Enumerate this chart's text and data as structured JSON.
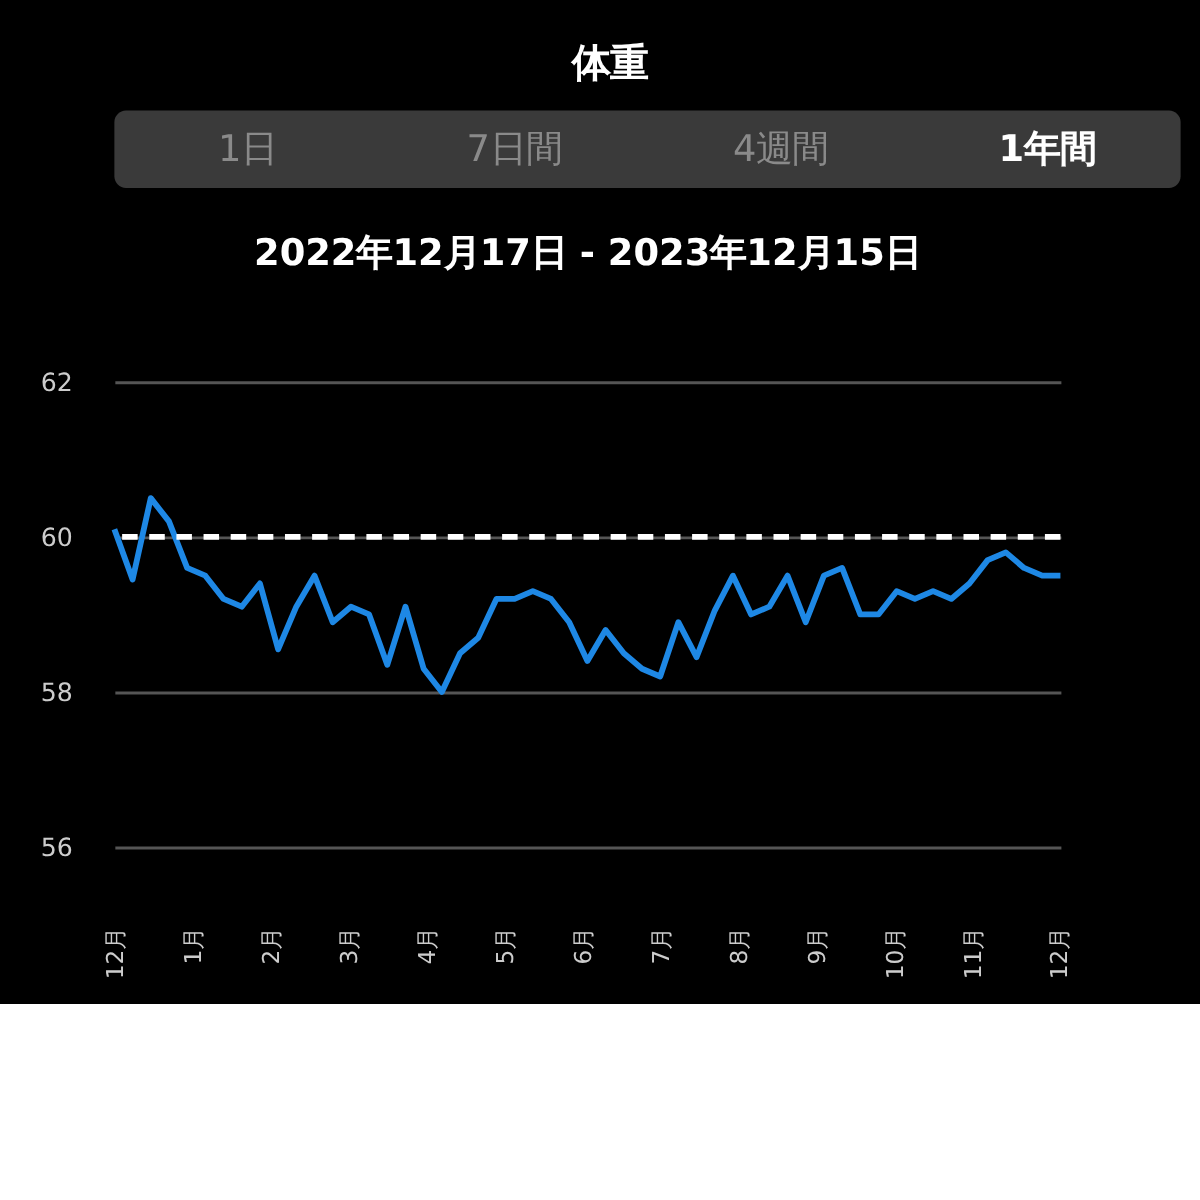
{
  "chart_data": {
    "type": "line",
    "title": "体重",
    "subtitle": "2022年12月17日 - 2023年12月15日",
    "annotations": [
      "1日",
      "7日間",
      "4週間",
      "1年間"
    ],
    "x": [
      "2022-12-17",
      "2022-12-24",
      "2022-12-31",
      "2023-01-07",
      "2023-01-14",
      "2023-01-21",
      "2023-01-28",
      "2023-02-04",
      "2023-02-11",
      "2023-02-18",
      "2023-02-25",
      "2023-03-04",
      "2023-03-11",
      "2023-03-18",
      "2023-03-25",
      "2023-04-01",
      "2023-04-08",
      "2023-04-15",
      "2023-04-22",
      "2023-04-29",
      "2023-05-06",
      "2023-05-13",
      "2023-05-20",
      "2023-05-27",
      "2023-06-03",
      "2023-06-10",
      "2023-06-17",
      "2023-06-24",
      "2023-07-01",
      "2023-07-08",
      "2023-07-15",
      "2023-07-22",
      "2023-07-29",
      "2023-08-05",
      "2023-08-12",
      "2023-08-19",
      "2023-08-26",
      "2023-09-02",
      "2023-09-09",
      "2023-09-16",
      "2023-09-23",
      "2023-09-30",
      "2023-10-07",
      "2023-10-14",
      "2023-10-21",
      "2023-10-28",
      "2023-11-04",
      "2023-11-11",
      "2023-11-18",
      "2023-11-25",
      "2023-12-02",
      "2023-12-09",
      "2023-12-16"
    ],
    "series": [
      {
        "color": "#1e88e5",
        "values": [
          60.1,
          59.45,
          60.5,
          60.2,
          59.6,
          59.5,
          59.2,
          59.1,
          59.4,
          58.55,
          59.1,
          59.5,
          58.9,
          59.1,
          59.0,
          58.35,
          59.1,
          58.3,
          58.0,
          58.5,
          58.7,
          59.2,
          59.2,
          59.3,
          59.2,
          58.9,
          58.4,
          58.8,
          58.5,
          58.3,
          58.2,
          58.9,
          58.45,
          59.05,
          59.5,
          59.0,
          59.1,
          59.5,
          58.9,
          59.5,
          59.6,
          59.0,
          59.0,
          59.3,
          59.2,
          59.3,
          59.2,
          59.4,
          59.7,
          59.8,
          59.6,
          59.5,
          59.5
        ]
      }
    ],
    "xlim": [
      "2022-12-17",
      "2023-12-16"
    ],
    "xticks": [
      {
        "value": "2022-12-17",
        "label": "12月"
      },
      {
        "value": "2023-01-16",
        "label": "1月"
      },
      {
        "value": "2023-02-15",
        "label": "2月"
      },
      {
        "value": "2023-03-17",
        "label": "3月"
      },
      {
        "value": "2023-04-16",
        "label": "4月"
      },
      {
        "value": "2023-05-16",
        "label": "5月"
      },
      {
        "value": "2023-06-15",
        "label": "6月"
      },
      {
        "value": "2023-07-15",
        "label": "7月"
      },
      {
        "value": "2023-08-14",
        "label": "8月"
      },
      {
        "value": "2023-09-13",
        "label": "9月"
      },
      {
        "value": "2023-10-13",
        "label": "10月"
      },
      {
        "value": "2023-11-12",
        "label": "11月"
      },
      {
        "value": "2023-12-15",
        "label": "12月"
      }
    ],
    "ylim": [
      56,
      62
    ],
    "yticks": [
      56,
      58,
      60,
      62
    ],
    "ref_lines": [
      {
        "axis": "y",
        "value": 60,
        "color": "#ffffff",
        "line_style": "dashed"
      }
    ],
    "grid": "y",
    "marker": "none",
    "line_style": "solid"
  }
}
